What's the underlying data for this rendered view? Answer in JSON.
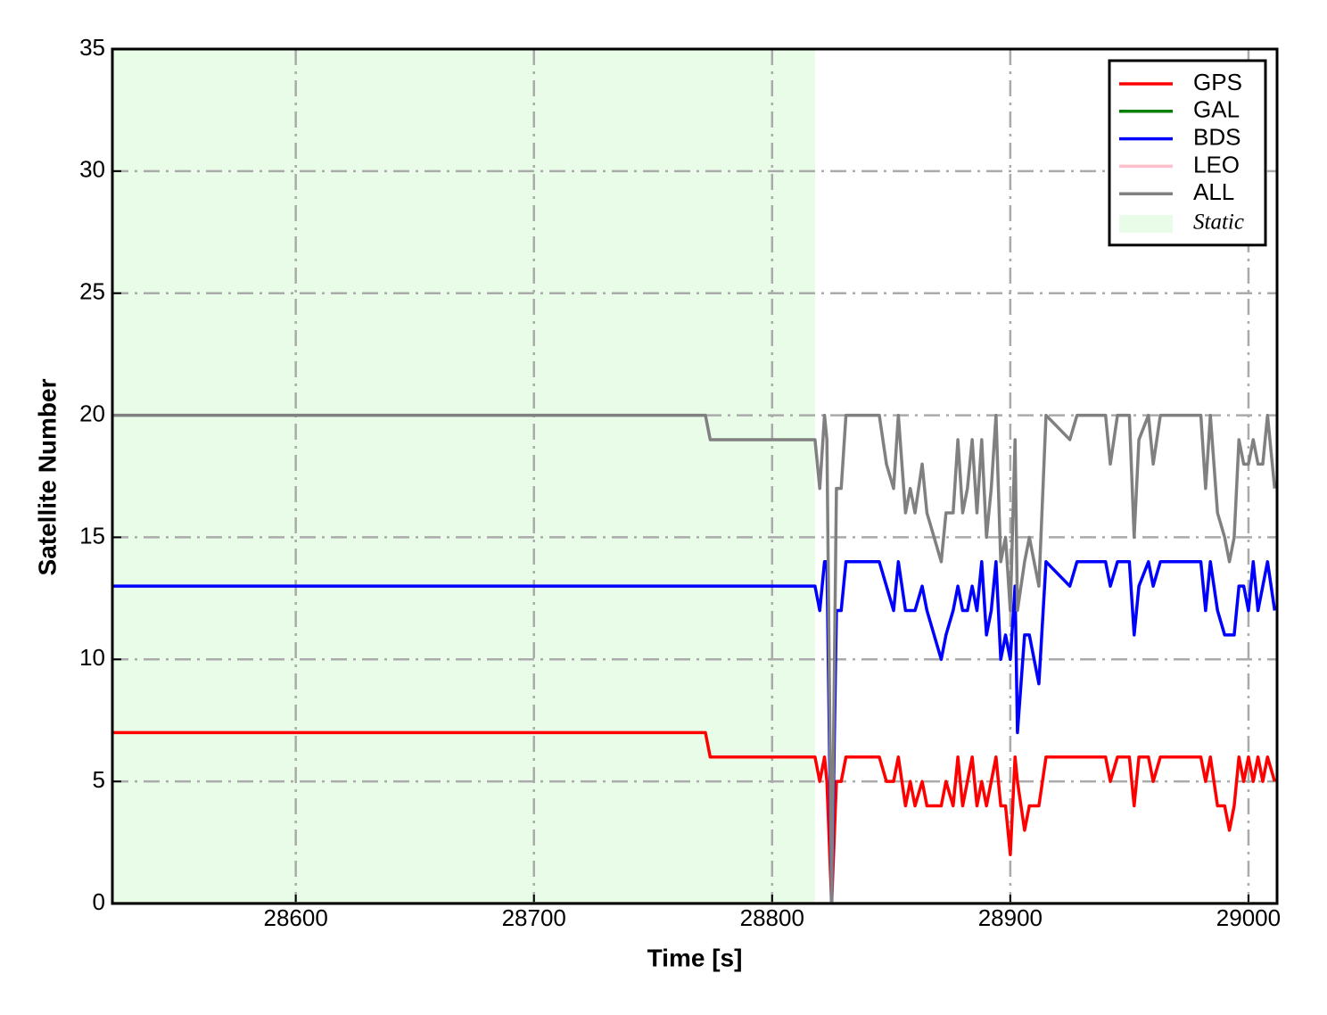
{
  "chart_data": {
    "type": "line",
    "xlabel": "Time [s]",
    "ylabel": "Satellite Number",
    "x": [
      28523,
      28772,
      28774,
      28818,
      28820,
      28822,
      28823,
      28825,
      28827,
      28829,
      28831,
      28845,
      28848,
      28851,
      28853,
      28856,
      28858,
      28860,
      28863,
      28865,
      28868,
      28871,
      28873,
      28876,
      28878,
      28880,
      28882,
      28884,
      28886,
      28888,
      28890,
      28892,
      28894,
      28896,
      28898,
      28900,
      28902,
      28903,
      28906,
      28908,
      28912,
      28915,
      28925,
      28928,
      28940,
      28942,
      28945,
      28950,
      28952,
      28954,
      28958,
      28960,
      28963,
      28980,
      28982,
      28984,
      28987,
      28990,
      28992,
      28994,
      28996,
      28998,
      29000,
      29002,
      29004,
      29006,
      29008,
      29011
    ],
    "series": [
      {
        "name": "GPS",
        "color": "#ff0000",
        "values": [
          7,
          7,
          6,
          6,
          5,
          6,
          5,
          0,
          5,
          5,
          6,
          6,
          5,
          5,
          6,
          4,
          5,
          4,
          5,
          4,
          4,
          4,
          5,
          4,
          6,
          4,
          5,
          6,
          4,
          5,
          4,
          5,
          6,
          4,
          4,
          2,
          6,
          5,
          3,
          4,
          4,
          6,
          6,
          6,
          6,
          5,
          6,
          6,
          4,
          6,
          6,
          5,
          6,
          6,
          5,
          6,
          4,
          4,
          3,
          4,
          6,
          5,
          6,
          5,
          6,
          5,
          6,
          5
        ]
      },
      {
        "name": "GAL",
        "color": "#008000",
        "values": [
          0,
          0,
          0,
          0,
          0,
          0,
          0,
          0,
          0,
          0,
          0,
          0,
          0,
          0,
          0,
          0,
          0,
          0,
          0,
          0,
          0,
          0,
          0,
          0,
          0,
          0,
          0,
          0,
          0,
          0,
          0,
          0,
          0,
          0,
          0,
          0,
          0,
          0,
          0,
          0,
          0,
          0,
          0,
          0,
          0,
          0,
          0,
          0,
          0,
          0,
          0,
          0,
          0,
          0,
          0,
          0,
          0,
          0,
          0,
          0,
          0,
          0,
          0,
          0,
          0,
          0,
          0,
          0
        ]
      },
      {
        "name": "BDS",
        "color": "#0000ff",
        "values": [
          13,
          13,
          13,
          13,
          12,
          14,
          14,
          0,
          12,
          12,
          14,
          14,
          13,
          12,
          14,
          12,
          12,
          12,
          13,
          12,
          11,
          10,
          11,
          12,
          13,
          12,
          12,
          13,
          12,
          14,
          11,
          12,
          14,
          10,
          11,
          10,
          13,
          7,
          11,
          11,
          9,
          14,
          13,
          14,
          14,
          13,
          14,
          14,
          11,
          13,
          14,
          13,
          14,
          14,
          12,
          14,
          12,
          11,
          11,
          11,
          13,
          13,
          12,
          14,
          12,
          13,
          14,
          12
        ]
      },
      {
        "name": "LEO",
        "color": "#ffc0cb",
        "values": [
          0,
          0,
          0,
          0,
          0,
          0,
          0,
          0,
          0,
          0,
          0,
          0,
          0,
          0,
          0,
          0,
          0,
          0,
          0,
          0,
          0,
          0,
          0,
          0,
          0,
          0,
          0,
          0,
          0,
          0,
          0,
          0,
          0,
          0,
          0,
          0,
          0,
          0,
          0,
          0,
          0,
          0,
          0,
          0,
          0,
          0,
          0,
          0,
          0,
          0,
          0,
          0,
          0,
          0,
          0,
          0,
          0,
          0,
          0,
          0,
          0,
          0,
          0,
          0,
          0,
          0,
          0,
          0
        ]
      },
      {
        "name": "ALL",
        "color": "#808080",
        "values": [
          20,
          20,
          19,
          19,
          17,
          20,
          19,
          0,
          17,
          17,
          20,
          20,
          18,
          17,
          20,
          16,
          17,
          16,
          18,
          16,
          15,
          14,
          16,
          16,
          19,
          16,
          17,
          19,
          16,
          19,
          15,
          17,
          20,
          14,
          15,
          12,
          19,
          12,
          14,
          15,
          13,
          20,
          19,
          20,
          20,
          18,
          20,
          20,
          15,
          19,
          20,
          18,
          20,
          20,
          17,
          20,
          16,
          15,
          14,
          15,
          19,
          18,
          18,
          19,
          18,
          18,
          20,
          17
        ]
      }
    ],
    "shade": {
      "name": "Static",
      "color": "#e8fce8",
      "x": [
        28523,
        28818
      ]
    },
    "xlim": [
      28523,
      29012
    ],
    "ylim": [
      0,
      35
    ],
    "xticks": [
      28600,
      28700,
      28800,
      28900,
      29000
    ],
    "yticks": [
      0,
      5,
      10,
      15,
      20,
      25,
      30,
      35
    ],
    "grid": true,
    "legend": "upper right"
  }
}
